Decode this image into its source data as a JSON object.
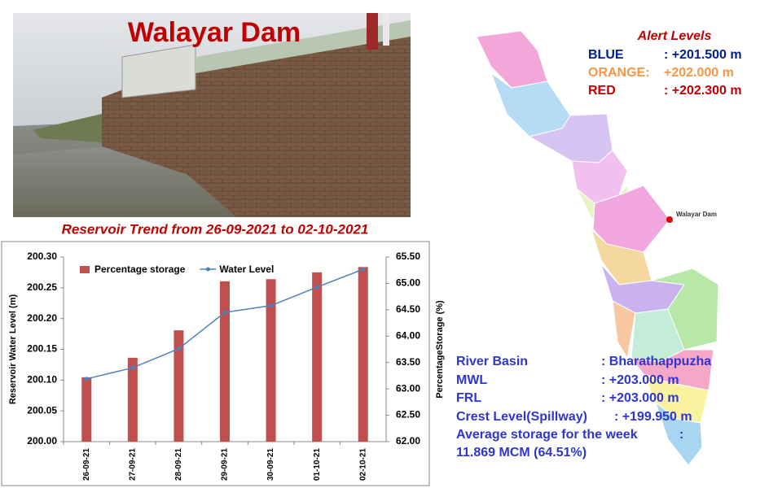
{
  "header": {
    "title": "Walayar Dam"
  },
  "alert_levels": {
    "title": "Alert Levels",
    "rows": [
      {
        "label": "BLUE",
        "value": ": +201.500 m"
      },
      {
        "label": "ORANGE:",
        "value": "+202.000 m"
      },
      {
        "label": "RED",
        "value": ": +202.300 m"
      }
    ]
  },
  "map": {
    "label": "Walayar Dam"
  },
  "info": {
    "rows": [
      {
        "label": "River Basin",
        "value": ": Bharathappuzha"
      },
      {
        "label": "MWL",
        "value": ": +203.000 m"
      },
      {
        "label": "FRL",
        "value": ": +203.000 m"
      },
      {
        "label": "Crest Level(Spillway)",
        "value": ": +199.950 m"
      },
      {
        "label": "Average storage for the week",
        "value": ":"
      }
    ],
    "note": "11.869 MCM (64.51%)"
  },
  "chart_data": {
    "type": "bar-line",
    "title": "Reservoir Trend from 26-09-2021 to 02-10-2021",
    "ylabel": "Reservoir Water Level (m)",
    "y2label": "PercentageStorage (%)",
    "categories": [
      "26-09-21",
      "27-09-21",
      "28-09-21",
      "29-09-21",
      "30-09-21",
      "01-10-21",
      "02-10-21"
    ],
    "series": [
      {
        "name": "Percentage storage",
        "type": "bar",
        "axis": "y2",
        "color": "#c0504d",
        "values": [
          63.22,
          63.59,
          64.11,
          65.04,
          65.08,
          65.21,
          65.31
        ]
      },
      {
        "name": "Water Level",
        "type": "line",
        "color": "#4f81bd",
        "values": [
          200.102,
          200.12,
          200.151,
          200.21,
          200.221,
          200.251,
          200.28
        ]
      }
    ],
    "ylim": [
      200,
      200.3
    ],
    "yticks": [
      {
        "value": 200,
        "label": "200.00"
      },
      {
        "value": 200.05,
        "label": "200.05"
      },
      {
        "value": 200.1,
        "label": "200.10"
      },
      {
        "value": 200.15,
        "label": "200.15"
      },
      {
        "value": 200.2,
        "label": "200.20"
      },
      {
        "value": 200.25,
        "label": "200.25"
      },
      {
        "value": 200.3,
        "label": "200.30"
      }
    ],
    "y2lim": [
      62,
      65.5
    ],
    "y2ticks": [
      {
        "value": 62,
        "label": "62.00"
      },
      {
        "value": 62.5,
        "label": "62.50"
      },
      {
        "value": 63,
        "label": "63.00"
      },
      {
        "value": 63.5,
        "label": "63.50"
      },
      {
        "value": 64,
        "label": "64.00"
      },
      {
        "value": 64.5,
        "label": "64.50"
      },
      {
        "value": 65,
        "label": "65.00"
      },
      {
        "value": 65.5,
        "label": "65.50"
      }
    ]
  }
}
